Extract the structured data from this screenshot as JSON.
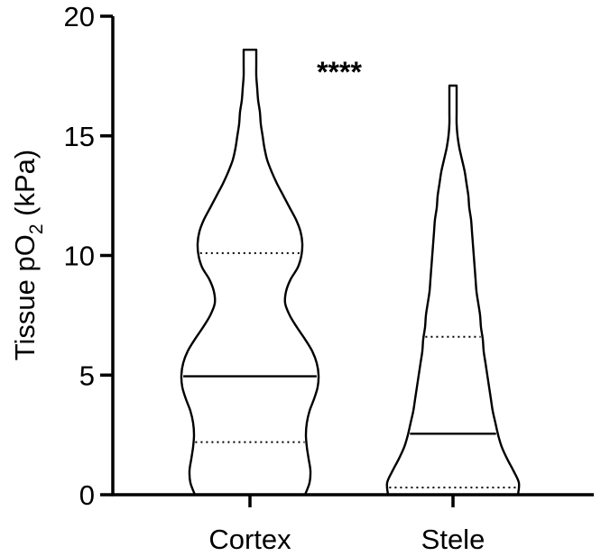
{
  "chart_data": {
    "type": "violin",
    "ylabel_main": "Tissue pO",
    "ylabel_sub": "2",
    "ylabel_unit": " (kPa)",
    "ylim": [
      0,
      20
    ],
    "yticks": [
      "0",
      "5",
      "10",
      "15",
      "20"
    ],
    "yticks_values": [
      0,
      5,
      10,
      15,
      20
    ],
    "categories": [
      "Cortex",
      "Stele"
    ],
    "significance": "****",
    "violins": [
      {
        "category": "Cortex",
        "min": 0.0,
        "max": 18.6,
        "median": 4.95,
        "q1": 2.2,
        "q3": 10.1,
        "profile": [
          [
            0.0,
            61
          ],
          [
            0.5,
            66
          ],
          [
            1.0,
            67
          ],
          [
            1.5,
            65
          ],
          [
            2.0,
            63
          ],
          [
            2.5,
            62
          ],
          [
            3.0,
            63
          ],
          [
            3.5,
            66
          ],
          [
            4.0,
            71
          ],
          [
            4.5,
            75
          ],
          [
            5.0,
            76
          ],
          [
            5.5,
            74
          ],
          [
            6.0,
            69
          ],
          [
            6.5,
            61
          ],
          [
            7.0,
            52
          ],
          [
            7.5,
            44
          ],
          [
            8.0,
            39
          ],
          [
            8.5,
            40
          ],
          [
            9.0,
            45
          ],
          [
            9.5,
            53
          ],
          [
            10.0,
            57
          ],
          [
            10.5,
            58
          ],
          [
            11.0,
            56
          ],
          [
            11.5,
            51
          ],
          [
            12.0,
            44
          ],
          [
            12.5,
            37
          ],
          [
            13.0,
            30
          ],
          [
            13.5,
            24
          ],
          [
            14.0,
            19
          ],
          [
            14.5,
            16
          ],
          [
            15.0,
            14
          ],
          [
            15.5,
            12
          ],
          [
            16.0,
            11
          ],
          [
            16.5,
            9
          ],
          [
            17.0,
            8
          ],
          [
            17.5,
            7
          ],
          [
            18.0,
            7
          ],
          [
            18.6,
            7
          ]
        ]
      },
      {
        "category": "Stele",
        "min": 0.0,
        "max": 17.1,
        "median": 2.55,
        "q1": 0.3,
        "q3": 6.6,
        "profile": [
          [
            0.0,
            72
          ],
          [
            0.5,
            73
          ],
          [
            1.0,
            67
          ],
          [
            1.5,
            60
          ],
          [
            2.0,
            54
          ],
          [
            2.5,
            50
          ],
          [
            3.0,
            47
          ],
          [
            3.5,
            44
          ],
          [
            4.0,
            42
          ],
          [
            4.5,
            40
          ],
          [
            5.0,
            38
          ],
          [
            5.5,
            36
          ],
          [
            6.0,
            34
          ],
          [
            6.5,
            33
          ],
          [
            7.0,
            31
          ],
          [
            7.5,
            30
          ],
          [
            8.0,
            28
          ],
          [
            8.5,
            26
          ],
          [
            9.0,
            25
          ],
          [
            9.5,
            24
          ],
          [
            10.0,
            23
          ],
          [
            10.5,
            22
          ],
          [
            11.0,
            21
          ],
          [
            11.5,
            20
          ],
          [
            12.0,
            18
          ],
          [
            12.5,
            17
          ],
          [
            13.0,
            15
          ],
          [
            13.5,
            13
          ],
          [
            14.0,
            10
          ],
          [
            14.5,
            7
          ],
          [
            15.0,
            5
          ],
          [
            15.5,
            4
          ],
          [
            16.0,
            4
          ],
          [
            16.5,
            4
          ],
          [
            17.1,
            4
          ]
        ]
      }
    ]
  }
}
